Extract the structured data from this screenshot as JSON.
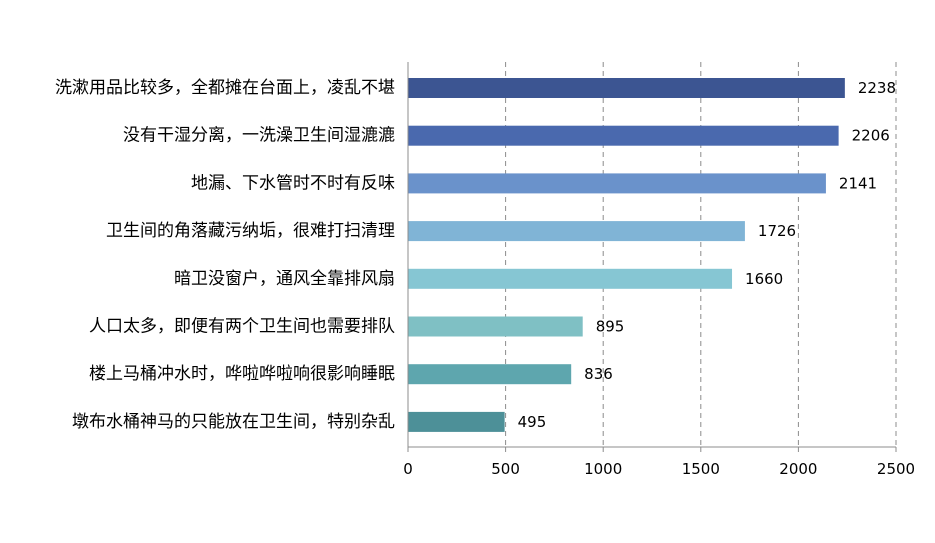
{
  "chart_data": {
    "type": "bar",
    "orientation": "horizontal",
    "categories": [
      "洗漱用品比较多，全都摊在台面上，凌乱不堪",
      "没有干湿分离，一洗澡卫生间湿漉漉",
      "地漏、下水管时不时有反味",
      "卫生间的角落藏污纳垢，很难打扫清理",
      "暗卫没窗户，通风全靠排风扇",
      "人口太多，即便有两个卫生间也需要排队",
      "楼上马桶冲水时，哗啦哗啦响很影响睡眠",
      "墩布水桶神马的只能放在卫生间，特别杂乱"
    ],
    "values": [
      2238,
      2206,
      2141,
      1726,
      1660,
      895,
      836,
      495
    ],
    "value_labels": [
      "2238",
      "2206",
      "2141",
      "1726",
      "1660",
      "895",
      "836",
      "495"
    ],
    "bar_colors": [
      "#3c5592",
      "#4a69ae",
      "#6a92cb",
      "#80b4d6",
      "#86c6d3",
      "#7fc0c4",
      "#5ea6ae",
      "#4d9098"
    ],
    "xlim": [
      0,
      2500
    ],
    "xticks": [
      0,
      500,
      1000,
      1500,
      2000,
      2500
    ],
    "xtick_labels": [
      "0",
      "500",
      "1000",
      "1500",
      "2000",
      "2500"
    ],
    "grid": "vertical dashed",
    "title": "",
    "xlabel": "",
    "ylabel": ""
  }
}
